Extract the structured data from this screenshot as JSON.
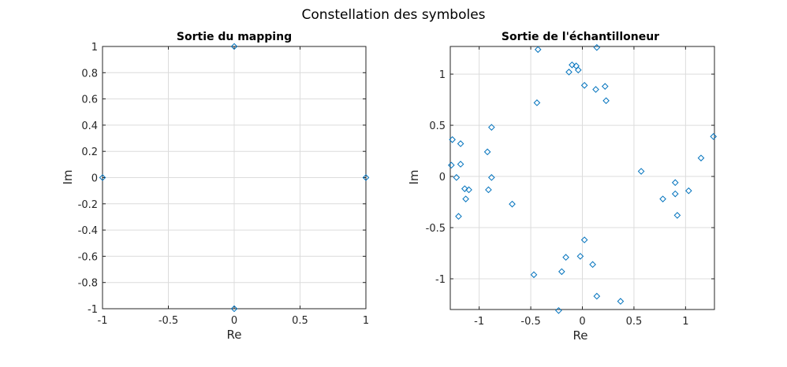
{
  "figure": {
    "title": "Constellation des symboles"
  },
  "chart_data": [
    {
      "type": "scatter",
      "title": "Sortie du mapping",
      "xlabel": "Re",
      "ylabel": "Im",
      "xlim": [
        -1,
        1
      ],
      "ylim": [
        -1,
        1
      ],
      "grid": true,
      "marker": "diamond",
      "color": "#0072bd",
      "xticks": [
        -1,
        -0.5,
        0,
        0.5,
        1
      ],
      "xtick_labels": [
        "-1",
        "-0.5",
        "0",
        "0.5",
        "1"
      ],
      "yticks": [
        -1,
        -0.8,
        -0.6,
        -0.4,
        -0.2,
        0,
        0.2,
        0.4,
        0.6,
        0.8,
        1
      ],
      "ytick_labels": [
        "-1",
        "-0.8",
        "-0.6",
        "-0.4",
        "-0.2",
        "0",
        "0.2",
        "0.4",
        "0.6",
        "0.8",
        "1"
      ],
      "points": [
        [
          0,
          1
        ],
        [
          -1,
          0
        ],
        [
          1,
          0
        ],
        [
          0,
          -1
        ]
      ]
    },
    {
      "type": "scatter",
      "title": "Sortie de l'échantilloneur",
      "xlabel": "Re",
      "ylabel": "Im",
      "xlim": [
        -1.28,
        1.28
      ],
      "ylim": [
        -1.3,
        1.27
      ],
      "grid": true,
      "marker": "diamond",
      "color": "#0072bd",
      "xticks": [
        -1,
        -0.5,
        0,
        0.5,
        1
      ],
      "xtick_labels": [
        "-1",
        "-0.5",
        "0",
        "0.5",
        "1"
      ],
      "yticks": [
        -1,
        -0.5,
        0,
        0.5,
        1
      ],
      "ytick_labels": [
        "-1",
        "-0.5",
        "0",
        "0.5",
        "1"
      ],
      "points": [
        [
          -0.43,
          1.24
        ],
        [
          0.14,
          1.26
        ],
        [
          -0.1,
          1.09
        ],
        [
          -0.06,
          1.08
        ],
        [
          -0.13,
          1.02
        ],
        [
          -0.04,
          1.04
        ],
        [
          0.02,
          0.89
        ],
        [
          0.13,
          0.85
        ],
        [
          0.22,
          0.88
        ],
        [
          0.23,
          0.74
        ],
        [
          -0.44,
          0.72
        ],
        [
          -0.88,
          0.48
        ],
        [
          -1.26,
          0.36
        ],
        [
          -1.18,
          0.32
        ],
        [
          -0.92,
          0.24
        ],
        [
          -1.27,
          0.11
        ],
        [
          -1.18,
          0.12
        ],
        [
          -1.22,
          -0.01
        ],
        [
          -0.88,
          -0.01
        ],
        [
          -1.14,
          -0.12
        ],
        [
          -1.1,
          -0.13
        ],
        [
          -0.91,
          -0.13
        ],
        [
          -1.13,
          -0.22
        ],
        [
          -1.2,
          -0.39
        ],
        [
          -0.68,
          -0.27
        ],
        [
          0.57,
          0.05
        ],
        [
          1.15,
          0.18
        ],
        [
          1.27,
          0.39
        ],
        [
          0.9,
          -0.06
        ],
        [
          1.03,
          -0.14
        ],
        [
          0.9,
          -0.17
        ],
        [
          0.78,
          -0.22
        ],
        [
          0.92,
          -0.38
        ],
        [
          0.02,
          -0.62
        ],
        [
          -0.02,
          -0.78
        ],
        [
          -0.16,
          -0.79
        ],
        [
          0.1,
          -0.86
        ],
        [
          -0.47,
          -0.96
        ],
        [
          -0.2,
          -0.93
        ],
        [
          0.14,
          -1.17
        ],
        [
          0.37,
          -1.22
        ],
        [
          -0.23,
          -1.31
        ]
      ]
    }
  ]
}
